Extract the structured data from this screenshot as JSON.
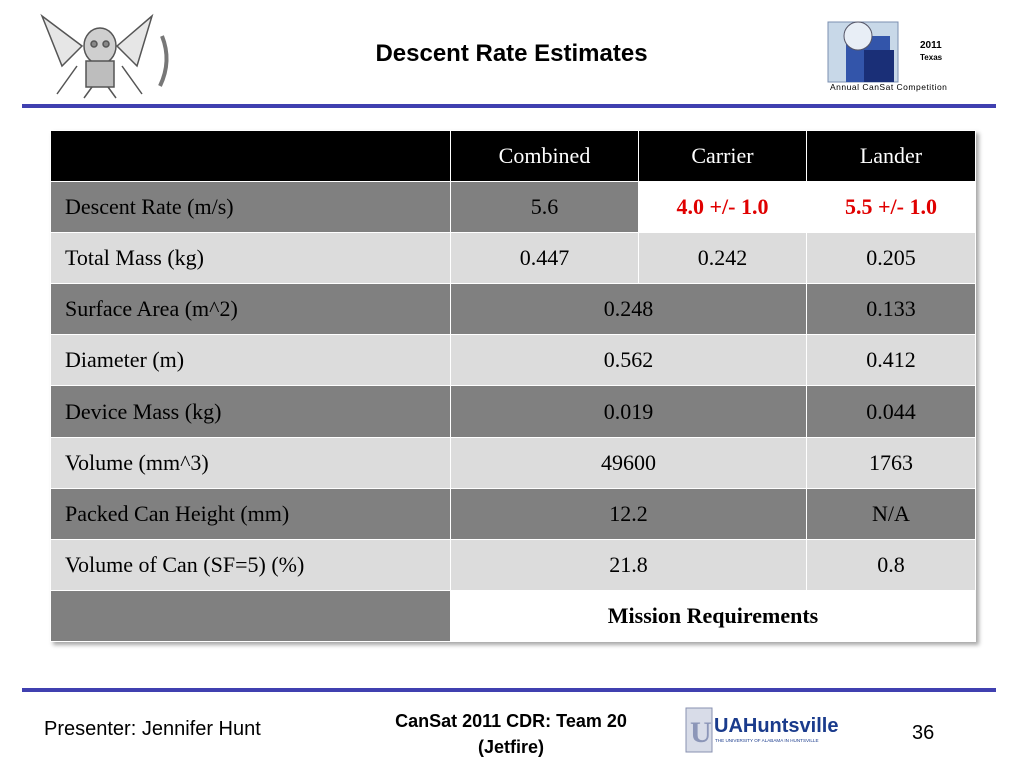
{
  "slide": {
    "title": "Descent Rate Estimates",
    "logo_right_year": "2011",
    "logo_right_state": "Texas",
    "logo_right_caption": "Annual CanSat Competition"
  },
  "table": {
    "headers": [
      "",
      "Combined",
      "Carrier",
      "Lander"
    ],
    "rows": [
      {
        "label": "Descent Rate (m/s)",
        "combined": "5.6",
        "carrier": "4.0 +/- 1.0",
        "lander": "5.5 +/- 1.0"
      },
      {
        "label": "Total Mass (kg)",
        "combined": "0.447",
        "carrier": "0.242",
        "lander": "0.205"
      },
      {
        "label": "Surface Area (m^2)",
        "combined_carrier": "0.248",
        "lander": "0.133"
      },
      {
        "label": "Diameter (m)",
        "combined_carrier": "0.562",
        "lander": "0.412"
      },
      {
        "label": "Device Mass (kg)",
        "combined_carrier": "0.019",
        "lander": "0.044"
      },
      {
        "label": "Volume (mm^3)",
        "combined_carrier": "49600",
        "lander": "1763"
      },
      {
        "label": "Packed Can Height (mm)",
        "combined_carrier": "12.2",
        "lander": "N/A"
      },
      {
        "label": "Volume of Can (SF=5) (%)",
        "combined_carrier": "21.8",
        "lander": "0.8"
      }
    ],
    "legend": "Mission Requirements",
    "highlight_color": "#e00000"
  },
  "footer": {
    "presenter": "Presenter: Jennifer Hunt",
    "center_line1": "CanSat 2011 CDR:  Team 20",
    "center_line2": "(Jetfire)",
    "uah_logo_text": "UAHuntsville",
    "uah_logo_sub": "THE UNIVERSITY OF ALABAMA IN HUNTSVILLE",
    "page_number": "36"
  }
}
